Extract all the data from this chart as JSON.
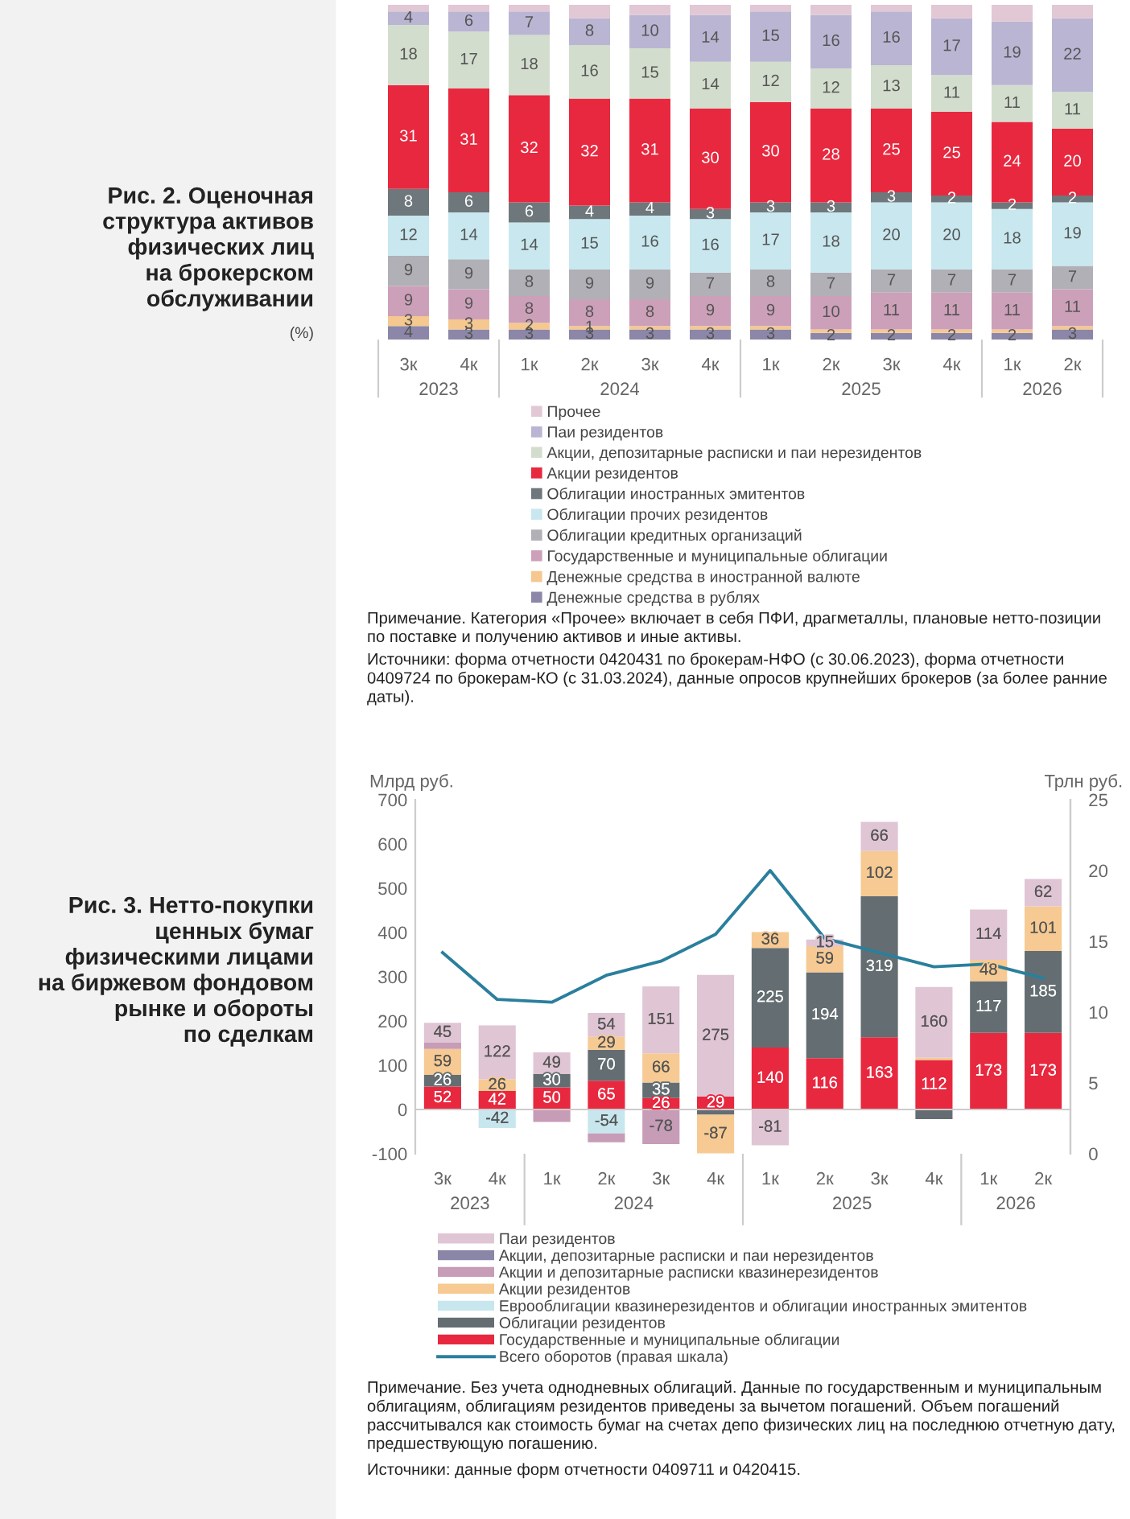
{
  "chart_data": [
    {
      "type": "bar",
      "stacked": true,
      "title": "Рис. 2. Оценочная\nструктура активов\nфизических лиц\nна брокерском\nобслуживании",
      "subtitle": "(%)",
      "categories": [
        "3к",
        "4к",
        "1к",
        "2к",
        "3к",
        "4к",
        "1к",
        "2к",
        "3к",
        "4к",
        "1к",
        "2к"
      ],
      "tick_labels": "x",
      "legend": "bottom",
      "series": [
        {
          "name": "Денежные средства в рублях",
          "color": "#8c87a8",
          "values": [
            4,
            3,
            3,
            3,
            3,
            3,
            3,
            2,
            2,
            2,
            2,
            3
          ],
          "value_labels": [
            "4",
            "3",
            "3",
            "3",
            "3",
            "3",
            "3",
            "2",
            "2",
            "2",
            "2",
            "3"
          ]
        },
        {
          "name": "Денежные средства в иностранной валюте",
          "color": "#f5c890",
          "values": [
            3,
            3,
            2,
            1,
            1,
            1,
            1,
            1,
            1,
            1,
            1,
            1
          ],
          "value_labels": [
            "3",
            "3",
            "2",
            "1",
            null,
            null,
            null,
            null,
            null,
            null,
            null,
            null
          ]
        },
        {
          "name": "Государственные и муниципальные облигации",
          "color": "#cda0b9",
          "values": [
            9,
            9,
            8,
            8,
            8,
            9,
            9,
            10,
            11,
            11,
            11,
            11
          ],
          "value_labels": [
            "9",
            "9",
            "8",
            "8",
            "8",
            "9",
            "9",
            "10",
            "11",
            "11",
            "11",
            "11"
          ]
        },
        {
          "name": "Облигации кредитных организаций",
          "color": "#b0b0b6",
          "values": [
            9,
            9,
            8,
            9,
            9,
            7,
            8,
            7,
            7,
            7,
            7,
            7
          ],
          "value_labels": [
            "9",
            "9",
            "8",
            "9",
            "9",
            "7",
            "8",
            "7",
            "7",
            "7",
            "7",
            "7"
          ]
        },
        {
          "name": "Облигации прочих резидентов",
          "color": "#c8e7ef",
          "values": [
            12,
            14,
            14,
            15,
            16,
            16,
            17,
            18,
            20,
            20,
            18,
            19
          ],
          "value_labels": [
            "12",
            "14",
            "14",
            "15",
            "16",
            "16",
            "17",
            "18",
            "20",
            "20",
            "18",
            "19"
          ]
        },
        {
          "name": "Облигации иностранных эмитентов",
          "color": "#6e777b",
          "values": [
            8,
            6,
            6,
            4,
            4,
            3,
            3,
            3,
            3,
            2,
            2,
            2
          ],
          "value_labels": [
            "8",
            "6",
            "6",
            "4",
            "4",
            "3",
            "3",
            "3",
            "3",
            "2",
            "2",
            "2"
          ]
        },
        {
          "name": "Акции резидентов",
          "color": "#e8283f",
          "values": [
            31,
            31,
            32,
            32,
            31,
            30,
            30,
            28,
            25,
            25,
            24,
            20
          ],
          "value_labels": [
            "31",
            "31",
            "32",
            "32",
            "31",
            "30",
            "30",
            "28",
            "25",
            "25",
            "24",
            "20"
          ]
        },
        {
          "name": "Акции, депозитарные расписки и паи нерезидентов",
          "color": "#d3ddcd",
          "values": [
            18,
            17,
            18,
            16,
            15,
            14,
            12,
            12,
            13,
            11,
            11,
            11
          ],
          "value_labels": [
            "18",
            "17",
            "18",
            "16",
            "15",
            "14",
            "12",
            "12",
            "13",
            "11",
            "11",
            "11"
          ]
        },
        {
          "name": "Паи резидентов",
          "color": "#b9b5d3",
          "values": [
            4,
            6,
            7,
            8,
            10,
            14,
            15,
            16,
            16,
            17,
            19,
            22
          ],
          "value_labels": [
            "4",
            "6",
            "7",
            "8",
            "10",
            "14",
            "15",
            "16",
            "16",
            "17",
            "19",
            "22"
          ]
        },
        {
          "name": "Прочее",
          "color": "#e2c7d5",
          "values": [
            2,
            2,
            2,
            4,
            3,
            3,
            2,
            3,
            2,
            4,
            5,
            4
          ]
        }
      ],
      "annotations": [
        "2023",
        "2024",
        "2025",
        "2026",
        "Примечание. Категория «Прочее» включает в себя ПФИ, драгметаллы, плановые нетто-позиции\nпо поставке и получению активов и иные активы.",
        "Источники: форма отчетности 0420431 по брокерам-НФО (с 30.06.2023), форма отчетности\n0409724 по брокерам-КО (с 31.03.2024), данные опросов крупнейших брокеров (за более ранние\nдаты)."
      ]
    },
    {
      "type": "bar",
      "stacked": true,
      "title": "Рис. 3. Нетто-покупки\nценных бумаг\nфизическими лицами\nна биржевом фондовом\nрынке и обороты\nпо сделкам",
      "ylabel": "Млрд руб.",
      "y2label": "Трлн руб.",
      "categories": [
        "3к",
        "4к",
        "1к",
        "2к",
        "3к",
        "4к",
        "1к",
        "2к",
        "3к",
        "4к",
        "1к",
        "2к"
      ],
      "ylim": [
        -100,
        700
      ],
      "yticks": [
        -100,
        0,
        100,
        200,
        300,
        400,
        500,
        600,
        700
      ],
      "y2lim": [
        0,
        25
      ],
      "y2ticks": [
        0,
        5,
        10,
        15,
        20,
        25
      ],
      "legend": "bottom",
      "series": [
        {
          "name": "Государственные и муниципальные облигации",
          "color": "#e8283f",
          "values": [
            52,
            42,
            50,
            65,
            26,
            29,
            140,
            116,
            163,
            112,
            173,
            173
          ],
          "value_labels": [
            "52",
            "42",
            "50",
            "65",
            "26",
            "29",
            "140",
            "116",
            "163",
            "112",
            "173",
            "173"
          ]
        },
        {
          "name": "Облигации резидентов",
          "color": "#646e72",
          "values": [
            26,
            null,
            30,
            70,
            35,
            -12,
            225,
            194,
            319,
            -22,
            117,
            185
          ],
          "value_labels": [
            "26",
            null,
            "30",
            "70",
            "35",
            null,
            "225",
            "194",
            "319",
            null,
            "117",
            "185"
          ]
        },
        {
          "name": "Еврооблигации квазинерезидентов и облигации иностранных эмитентов",
          "color": "#c8e6ee",
          "values": [
            null,
            -42,
            null,
            -54,
            null,
            null,
            null,
            null,
            null,
            null,
            null,
            null
          ],
          "value_labels": [
            null,
            "-42",
            null,
            "-54",
            null,
            null,
            null,
            null,
            null,
            null,
            null,
            null
          ]
        },
        {
          "name": "Акции резидентов",
          "color": "#f6ca92",
          "values": [
            59,
            26,
            null,
            29,
            66,
            -87,
            36,
            59,
            102,
            5,
            48,
            101
          ],
          "value_labels": [
            "59",
            "26",
            null,
            "29",
            "66",
            "-87",
            "36",
            "59",
            "102",
            null,
            "48",
            "101"
          ]
        },
        {
          "name": "Акции и депозитарные расписки квазинерезидентов",
          "color": "#c69cb7",
          "values": [
            14,
            null,
            -28,
            -20,
            -78,
            null,
            null,
            null,
            null,
            null,
            null,
            null
          ],
          "value_labels": [
            null,
            null,
            null,
            null,
            "-78",
            null,
            null,
            null,
            null,
            null,
            null,
            null
          ]
        },
        {
          "name": "Акции, депозитарные расписки и паи нерезидентов",
          "color": "#8a86a8",
          "values": [
            null,
            null,
            null,
            null,
            null,
            null,
            null,
            null,
            null,
            null,
            null,
            null
          ]
        },
        {
          "name": "Паи резидентов",
          "color": "#e0c5d4",
          "values": [
            45,
            122,
            49,
            54,
            151,
            275,
            -81,
            15,
            66,
            160,
            114,
            62
          ],
          "value_labels": [
            "45",
            "122",
            "49",
            "54",
            "151",
            "275",
            "-81",
            "15",
            "66",
            "160",
            "114",
            "62"
          ]
        },
        {
          "name": "Всего оборотов (правая шкала)",
          "type": "line",
          "axis": "y2",
          "color": "#2a7f9c",
          "values": [
            14.2,
            10.9,
            10.7,
            12.6,
            13.6,
            15.5,
            20.0,
            15.2,
            14.2,
            13.2,
            13.4,
            12.4
          ]
        }
      ],
      "annotations": [
        "2023",
        "2024",
        "2025",
        "2026",
        "Примечание. Без учета однодневных облигаций. Данные по государственным и муниципальным\nоблигациям, облигациям резидентов приведены за вычетом погашений. Объем погашений\nрассчитывался как стоимость бумаг на счетах депо физических лиц на последнюю отчетную дату,\nпредшествующую погашению.",
        "Источники: данные форм отчетности 0409711 и 0420415."
      ]
    }
  ]
}
